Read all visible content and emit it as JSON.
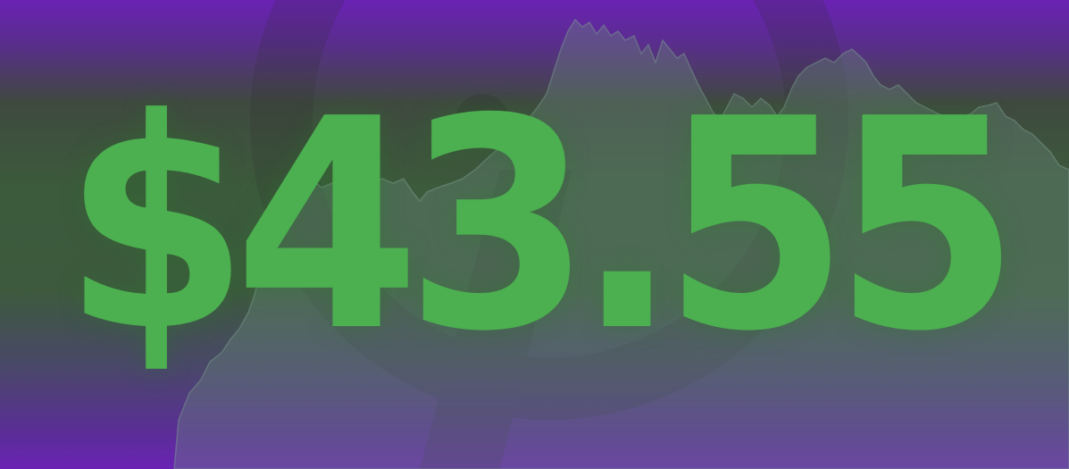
{
  "banner": {
    "price": "$43.55",
    "colors": {
      "price_green": "#4caf50",
      "background_purple": "#6a22b4",
      "background_dark_green": "#3c5a3c",
      "chart_fill": "#5b7b6a"
    },
    "decor": {
      "background_chart": "price-area-chart",
      "background_logo": "faded-circle-logo"
    }
  }
}
